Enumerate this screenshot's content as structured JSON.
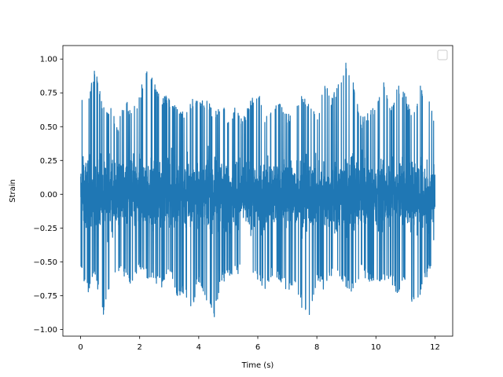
{
  "chart_data": {
    "type": "line",
    "title": "",
    "xlabel": "Time (s)",
    "ylabel": "Strain",
    "xlim": [
      -0.6,
      12.6
    ],
    "ylim": [
      -1.05,
      1.1
    ],
    "x_ticks": [
      0,
      2,
      4,
      6,
      8,
      10,
      12
    ],
    "x_tick_labels": [
      "0",
      "2",
      "4",
      "6",
      "8",
      "10",
      "12"
    ],
    "y_ticks": [
      -1.0,
      -0.75,
      -0.5,
      -0.25,
      0.0,
      0.25,
      0.5,
      0.75,
      1.0
    ],
    "y_tick_labels": [
      "−1.00",
      "−0.75",
      "−0.50",
      "−0.25",
      "0.00",
      "0.25",
      "0.50",
      "0.75",
      "1.00"
    ],
    "grid": false,
    "legend": {
      "position": "top-right",
      "entries": []
    },
    "colors": {
      "line": "#1f77b4",
      "axes": "#000000",
      "background": "#ffffff"
    },
    "series": [
      {
        "color": "#1f77b4",
        "sampling": "noisy signal, approx. 12000 samples over 0–12 s; envelope values shown",
        "x": [
          0,
          0.25,
          0.5,
          0.75,
          1,
          1.25,
          1.5,
          1.75,
          2,
          2.25,
          2.5,
          2.75,
          3,
          3.25,
          3.5,
          3.75,
          4,
          4.25,
          4.5,
          4.75,
          5,
          5.25,
          5.5,
          5.75,
          6,
          6.25,
          6.5,
          6.75,
          7,
          7.25,
          7.5,
          7.75,
          8,
          8.25,
          8.5,
          8.75,
          9,
          9.25,
          9.5,
          9.75,
          10,
          10.25,
          10.5,
          10.75,
          11,
          11.25,
          11.5,
          11.75,
          12
        ],
        "y_max": [
          0.71,
          0.75,
          0.96,
          0.65,
          0.66,
          0.52,
          0.7,
          0.65,
          0.74,
          0.98,
          0.84,
          0.74,
          0.72,
          0.65,
          0.6,
          0.72,
          0.68,
          0.72,
          0.62,
          0.7,
          0.57,
          0.66,
          0.55,
          0.73,
          0.77,
          0.58,
          0.66,
          0.68,
          0.6,
          0.62,
          0.75,
          0.7,
          0.58,
          0.86,
          0.72,
          0.82,
          0.99,
          0.85,
          0.56,
          0.62,
          0.68,
          0.85,
          0.62,
          0.81,
          0.75,
          0.55,
          0.83,
          0.74,
          0.56
        ],
        "y_min": [
          -0.56,
          -0.75,
          -0.6,
          -0.92,
          -0.66,
          -0.57,
          -0.62,
          -0.68,
          -0.58,
          -0.63,
          -0.65,
          -0.7,
          -0.55,
          -0.78,
          -0.74,
          -0.89,
          -0.64,
          -0.78,
          -0.95,
          -0.66,
          -0.63,
          -0.6,
          -0.58,
          -0.62,
          -0.64,
          -0.72,
          -0.6,
          -0.65,
          -0.72,
          -0.66,
          -0.85,
          -0.91,
          -0.65,
          -0.71,
          -0.6,
          -0.65,
          -0.69,
          -0.74,
          -0.58,
          -0.66,
          -0.63,
          -0.67,
          -0.64,
          -0.77,
          -0.63,
          -0.84,
          -0.75,
          -0.6,
          -0.58
        ]
      }
    ]
  }
}
